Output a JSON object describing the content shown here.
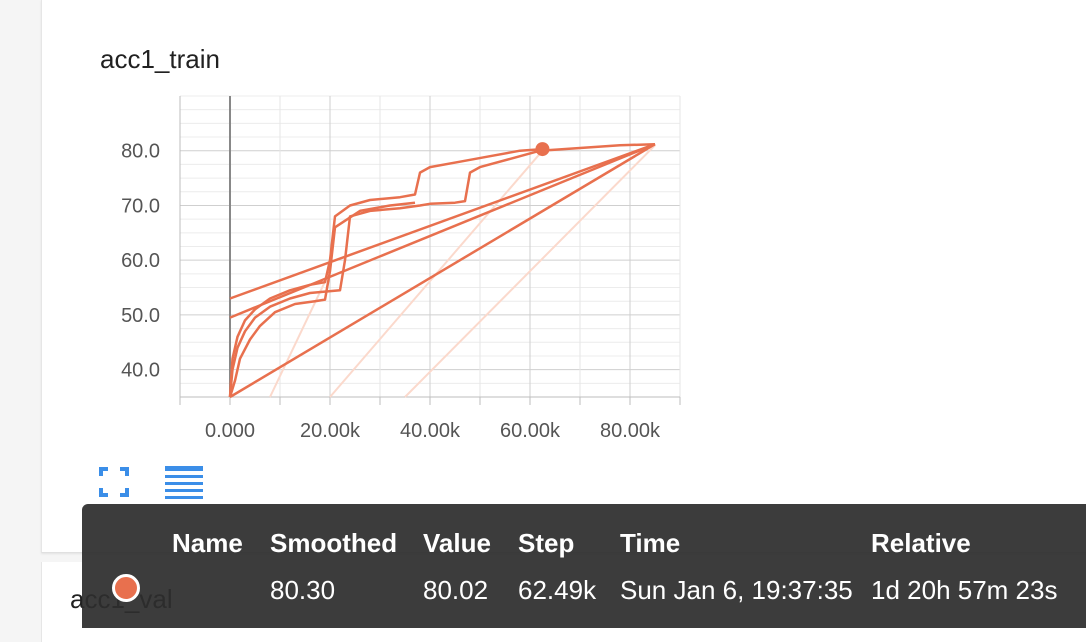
{
  "card": {
    "title": "acc1_train"
  },
  "next_card": {
    "title": "acc1_val"
  },
  "icons": {
    "fullscreen": "fullscreen-icon",
    "data_table": "list-icon"
  },
  "colors": {
    "series": "#e8704e",
    "series_faded": "#fbd9cc",
    "grid": "#dcdcdc",
    "axis": "#888888",
    "tooltip_bg": "#2d2d2d"
  },
  "chart_data": {
    "type": "line",
    "title": "acc1_train",
    "xlabel": "",
    "ylabel": "",
    "xlim": [
      -10000,
      90000
    ],
    "ylim": [
      35,
      90
    ],
    "x_ticks": [
      0,
      20000,
      40000,
      60000,
      80000
    ],
    "x_tick_labels": [
      "0.000",
      "20.00k",
      "40.00k",
      "60.00k",
      "80.00k"
    ],
    "y_ticks": [
      40,
      50,
      60,
      70,
      80
    ],
    "y_tick_labels": [
      "40.0",
      "50.0",
      "60.0",
      "70.0",
      "80.0"
    ],
    "grid": true,
    "series": [
      {
        "x": [
          0,
          500,
          1500,
          3000,
          5000,
          8000,
          12000,
          16000,
          19000,
          20000,
          21000,
          24000,
          28000,
          34000,
          37000,
          38000,
          40000,
          46000,
          52000,
          58000,
          62500
        ],
        "values": [
          35,
          42,
          46,
          49,
          51,
          53,
          54.5,
          55.5,
          56,
          60,
          68,
          70,
          71,
          71.5,
          72,
          76,
          77,
          78,
          79,
          80,
          80.3
        ]
      },
      {
        "x": [
          0,
          500,
          1500,
          3000,
          5000,
          8000,
          12000,
          16000,
          22000,
          23000,
          24000,
          28000,
          34000,
          38000,
          40000,
          45000,
          47000,
          48000,
          50000,
          56000,
          62000,
          70000,
          78000,
          85000
        ],
        "values": [
          35,
          40,
          44,
          47,
          49.5,
          51.5,
          53,
          54,
          54.5,
          60,
          68,
          69,
          69.5,
          70,
          70.3,
          70.5,
          70.8,
          76,
          77,
          78.5,
          80,
          80.5,
          81,
          81.2
        ]
      },
      {
        "x": [
          0,
          1000,
          2000,
          4000,
          6000,
          9000,
          13000,
          17000,
          19000,
          20000,
          21000,
          26000,
          32000,
          37000
        ],
        "values": [
          35,
          38,
          42,
          45.5,
          48,
          50.5,
          52,
          52.5,
          52.8,
          58,
          66,
          69,
          70,
          70.5
        ]
      },
      {
        "x": [
          0,
          85000
        ],
        "values": [
          53,
          81.2
        ]
      },
      {
        "x": [
          0,
          85000
        ],
        "values": [
          49.5,
          81.2
        ]
      },
      {
        "x": [
          0,
          85000
        ],
        "values": [
          35,
          81.2
        ]
      }
    ],
    "faded_lines": [
      {
        "x": [
          8000,
          20000
        ],
        "values": [
          35,
          58
        ]
      },
      {
        "x": [
          20000,
          62500
        ],
        "values": [
          35,
          80
        ]
      },
      {
        "x": [
          35000,
          85000
        ],
        "values": [
          35,
          81
        ]
      }
    ],
    "highlight": {
      "x": 62490,
      "y": 80.3
    }
  },
  "tooltip": {
    "headers": [
      "Name",
      "Smoothed",
      "Value",
      "Step",
      "Time",
      "Relative"
    ],
    "row": {
      "name": "",
      "smoothed": "80.30",
      "value": "80.02",
      "step": "62.49k",
      "time": "Sun Jan 6, 19:37:35",
      "relative": "1d 20h 57m 23s"
    }
  }
}
